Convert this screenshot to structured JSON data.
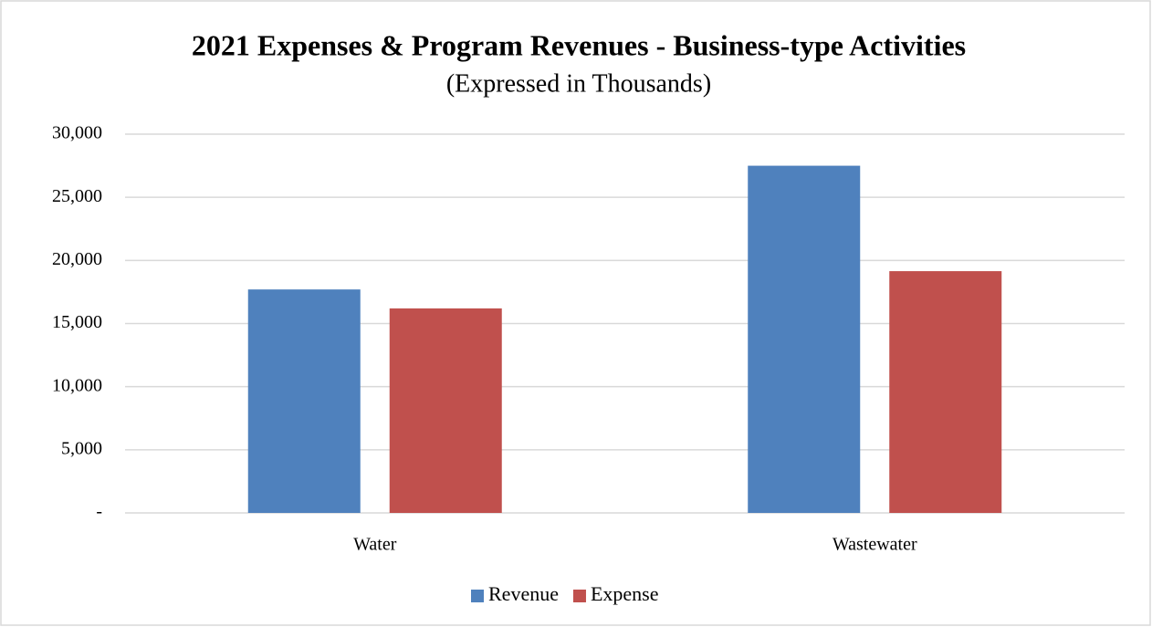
{
  "chart_data": {
    "type": "bar",
    "title": "2021 Expenses & Program  Revenues - Business-type Activities",
    "subtitle": "(Expressed  in Thousands)",
    "categories": [
      "Water",
      "Wastewater"
    ],
    "series": [
      {
        "name": "Revenue",
        "color": "#4f81bd",
        "values": [
          17700,
          27500
        ]
      },
      {
        "name": "Expense",
        "color": "#c0504d",
        "values": [
          16200,
          19150
        ]
      }
    ],
    "ylim": [
      0,
      30000
    ],
    "yticks": [
      {
        "value": 0,
        "label": "-"
      },
      {
        "value": 5000,
        "label": "5,000"
      },
      {
        "value": 10000,
        "label": "10,000"
      },
      {
        "value": 15000,
        "label": "15,000"
      },
      {
        "value": 20000,
        "label": "20,000"
      },
      {
        "value": 25000,
        "label": "25,000"
      },
      {
        "value": 30000,
        "label": "30,000"
      }
    ],
    "grid": true,
    "legend": "bottom"
  }
}
